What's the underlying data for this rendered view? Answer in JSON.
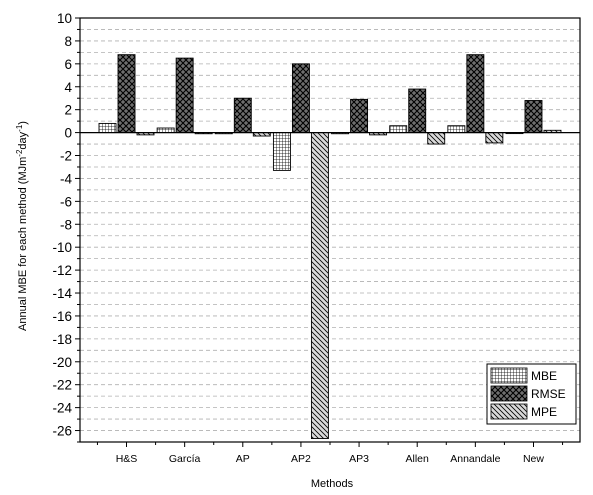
{
  "chart_data": {
    "type": "bar",
    "xlabel": "Methods",
    "ylabel": {
      "main": "Annual MBE for each method (MJm",
      "sup1": "-2",
      "mid": "day",
      "sup2": "-1",
      "end": ")"
    },
    "categories": [
      "H&S",
      "García",
      "AP",
      "AP2",
      "AP3",
      "Allen",
      "Annandale",
      "New"
    ],
    "series": [
      {
        "name": "MBE",
        "pattern": "grid",
        "values": [
          0.8,
          0.4,
          -0.1,
          -3.3,
          -0.1,
          0.6,
          0.6,
          -0.05
        ]
      },
      {
        "name": "RMSE",
        "pattern": "cross",
        "values": [
          6.8,
          6.5,
          3.0,
          6.0,
          2.9,
          3.8,
          6.8,
          2.8
        ]
      },
      {
        "name": "MPE",
        "pattern": "hatch",
        "values": [
          -0.2,
          -0.1,
          -0.3,
          -26.7,
          -0.2,
          -1.0,
          -0.9,
          0.2
        ]
      }
    ],
    "ylim": [
      -27,
      10
    ],
    "yticks": [
      10,
      8,
      6,
      4,
      2,
      0,
      -2,
      -4,
      -6,
      -8,
      -10,
      -12,
      -14,
      -16,
      -18,
      -20,
      -22,
      -24,
      -26
    ],
    "grid": "dashed-horizontal",
    "legend_position": "bottom-right"
  }
}
